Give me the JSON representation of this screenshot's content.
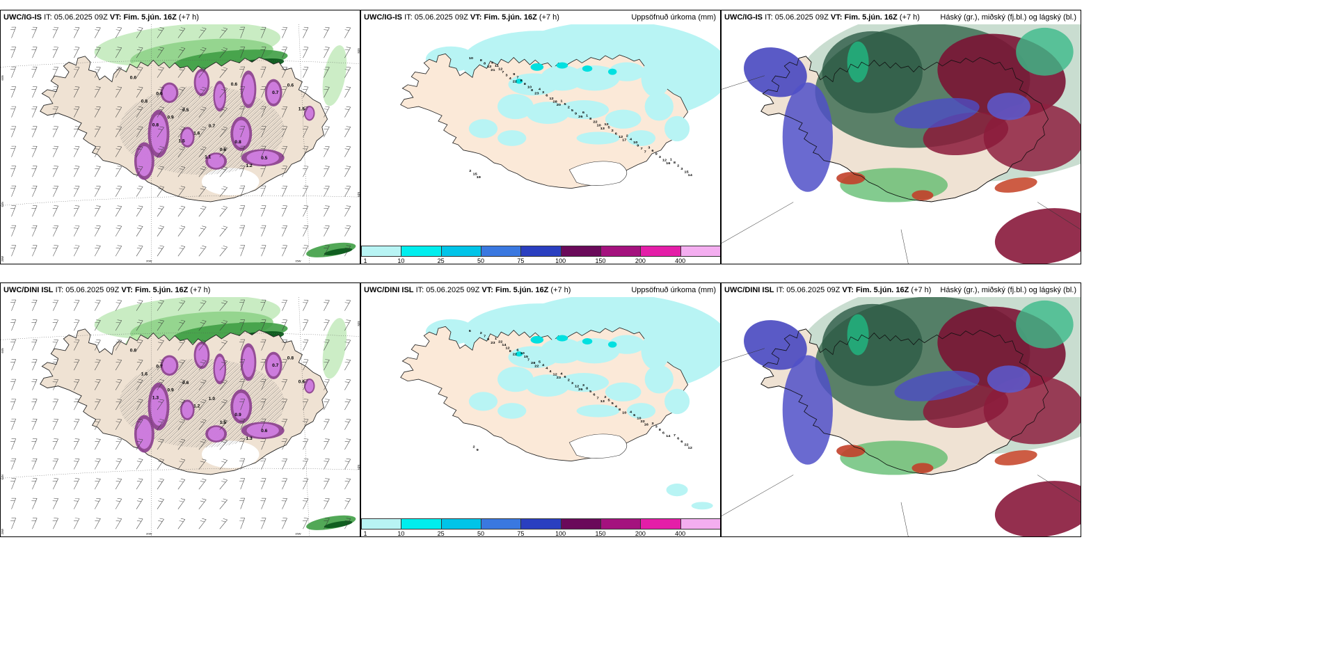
{
  "panels": [
    {
      "model": "UWC/IG-IS",
      "it_label": "IT:",
      "it": "05.06.2025 09Z",
      "vt_label": "VT:",
      "vt": "Fim. 5.jún. 16Z",
      "lead": "(+7 h)",
      "right": ""
    },
    {
      "model": "UWC/IG-IS",
      "it_label": "IT:",
      "it": "05.06.2025 09Z",
      "vt_label": "VT:",
      "vt": "Fim. 5.jún. 16Z",
      "lead": "(+7 h)",
      "right": "Uppsöfnuð úrkoma (mm)"
    },
    {
      "model": "UWC/IG-IS",
      "it_label": "IT:",
      "it": "05.06.2025 09Z",
      "vt_label": "VT:",
      "vt": "Fim. 5.jún. 16Z",
      "lead": "(+7 h)",
      "right": "Háský (gr.), miðský (fj.bl.) og lágský (bl.)"
    },
    {
      "model": "UWC/DINI ISL",
      "it_label": "IT:",
      "it": "05.06.2025 09Z",
      "vt_label": "VT:",
      "vt": "Fim. 5.jún. 16Z",
      "lead": "(+7 h)",
      "right": ""
    },
    {
      "model": "UWC/DINI ISL",
      "it_label": "IT:",
      "it": "05.06.2025 09Z",
      "vt_label": "VT:",
      "vt": "Fim. 5.jún. 16Z",
      "lead": "(+7 h)",
      "right": "Uppsöfnuð úrkoma (mm)"
    },
    {
      "model": "UWC/DINI ISL",
      "it_label": "IT:",
      "it": "05.06.2025 09Z",
      "vt_label": "VT:",
      "vt": "Fim. 5.jún. 16Z",
      "lead": "(+7 h)",
      "right": "Háský (gr.), miðský (fj.bl.) og lágský (bl.)"
    }
  ],
  "grid_labels": {
    "lat66": "66N",
    "lat64": "64N",
    "lat63": "63N",
    "lon20": "20W",
    "lon15": "15W",
    "lon25": "25W",
    "lat65": "65N"
  },
  "colorbar": {
    "labels": [
      "1",
      "10",
      "25",
      "50",
      "75",
      "100",
      "150",
      "200",
      "400"
    ],
    "colors": [
      "#b8f4f4",
      "#00eeee",
      "#00c4e8",
      "#3a78e0",
      "#2a3fc0",
      "#6a0a5a",
      "#a4127e",
      "#e41ea8",
      "#f4aef0"
    ]
  },
  "precip_labels_top": [
    "10",
    "21",
    "22",
    "23",
    "20",
    "26",
    "13",
    "17",
    "7",
    "16",
    "14",
    "12",
    "4",
    "8",
    "28",
    "9",
    "10",
    "12",
    "7",
    "12",
    "15",
    "8",
    "3",
    "10",
    "12",
    "5",
    "22",
    "6",
    "9",
    "3",
    "3",
    "8",
    "7",
    "8",
    "6",
    "2",
    "8",
    "2",
    "10",
    "9",
    "2",
    "19",
    "12",
    "8",
    "3",
    "5",
    "1",
    "5",
    "4",
    "6",
    "8",
    "15",
    "11",
    "7",
    "4",
    "1",
    "6",
    "12",
    "2",
    "3",
    "1",
    "2",
    "4",
    "9"
  ],
  "precip_labels_bottom": [
    "6",
    "23",
    "22",
    "22",
    "23",
    "26",
    "13",
    "10",
    "16",
    "14",
    "12",
    "9",
    "8",
    "28",
    "12",
    "12",
    "7",
    "8",
    "22",
    "6",
    "22",
    "7",
    "12",
    "7",
    "4",
    "3",
    "6",
    "4",
    "10",
    "8",
    "6",
    "2",
    "14",
    "15",
    "4",
    "2",
    "5",
    "5",
    "6",
    "3",
    "6",
    "9",
    "22",
    "10",
    "4",
    "6",
    "8",
    "5",
    "4",
    "3",
    "7",
    "2",
    "1",
    "6",
    "5",
    "4",
    "3",
    "2"
  ],
  "wind_labels_top": [
    "0.6",
    "0.6",
    "0.5",
    "0.7",
    "0.8",
    "0.5",
    "0.6",
    "0.8",
    "0.9",
    "1.6",
    "0.6",
    "1.2",
    "0.7",
    "1.5",
    "0.8",
    "1.5",
    "1.1",
    "0.6"
  ],
  "wind_labels_bottom": [
    "0.8",
    "0.7",
    "0.6",
    "1.0",
    "0.9",
    "0.6",
    "0.8",
    "1.6",
    "0.9",
    "1.2",
    "1.5",
    "1.3",
    "0.7",
    "0.6",
    "1.3"
  ]
}
